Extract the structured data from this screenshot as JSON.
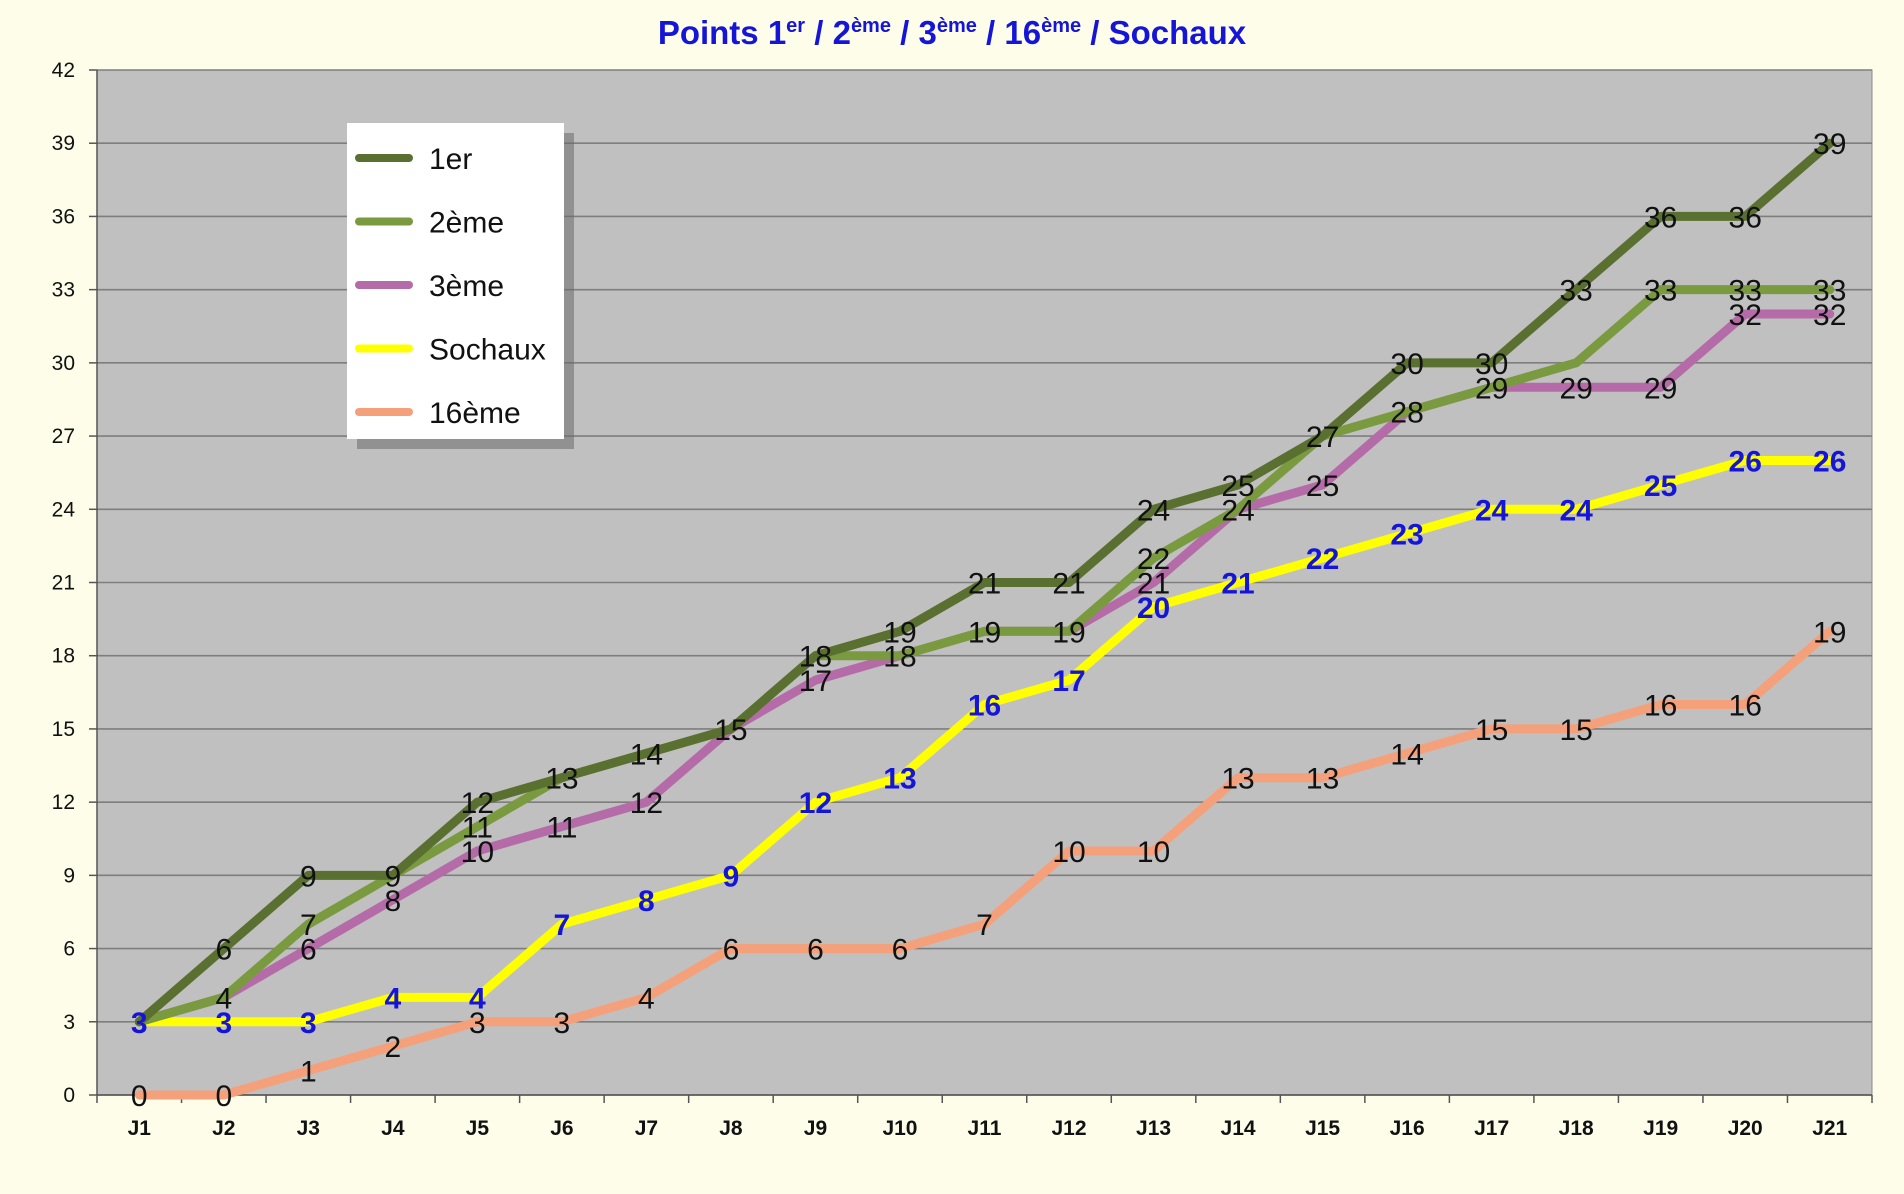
{
  "title": {
    "parts": [
      {
        "text": "Points 1",
        "sup": false
      },
      {
        "text": "er",
        "sup": true
      },
      {
        "text": " / 2",
        "sup": false
      },
      {
        "text": "ème",
        "sup": true
      },
      {
        "text": " / 3",
        "sup": false
      },
      {
        "text": "ème",
        "sup": true
      },
      {
        "text": " / 16",
        "sup": false
      },
      {
        "text": "ème",
        "sup": true
      },
      {
        "text": " / Sochaux",
        "sup": false
      }
    ],
    "color": "#1515d8"
  },
  "chart_data": {
    "type": "line",
    "title": "Points 1er / 2ème / 3ème / 16ème / Sochaux",
    "xlabel": "",
    "ylabel": "",
    "categories": [
      "J1",
      "J2",
      "J3",
      "J4",
      "J5",
      "J6",
      "J7",
      "J8",
      "J9",
      "J10",
      "J11",
      "J12",
      "J13",
      "J14",
      "J15",
      "J16",
      "J17",
      "J18",
      "J19",
      "J20",
      "J21"
    ],
    "ylim": [
      0,
      42
    ],
    "yticks": [
      0,
      3,
      6,
      9,
      12,
      15,
      18,
      21,
      24,
      27,
      30,
      33,
      36,
      39,
      42
    ],
    "grid": true,
    "legend_position": "top-left",
    "plot_background": "#c0c0c0",
    "series": [
      {
        "name": "1er",
        "color": "#5a7030",
        "label_style": "black",
        "show_labels": true,
        "values": [
          3,
          6,
          9,
          9,
          12,
          13,
          14,
          15,
          18,
          19,
          21,
          21,
          24,
          25,
          27,
          30,
          30,
          33,
          36,
          36,
          39
        ]
      },
      {
        "name": "2ème",
        "color": "#7a9a40",
        "label_style": "black",
        "show_labels": true,
        "values": [
          3,
          4,
          7,
          9,
          11,
          13,
          14,
          15,
          18,
          18,
          19,
          19,
          22,
          24,
          27,
          28,
          29,
          30,
          33,
          33,
          33
        ]
      },
      {
        "name": "3ème",
        "color": "#b46ba8",
        "label_style": "black",
        "show_labels": true,
        "values": [
          3,
          4,
          6,
          8,
          10,
          11,
          12,
          15,
          17,
          18,
          19,
          19,
          21,
          24,
          25,
          28,
          29,
          29,
          29,
          32,
          32
        ]
      },
      {
        "name": "Sochaux",
        "color": "#ffff00",
        "label_style": "blue",
        "show_labels": true,
        "values": [
          3,
          3,
          3,
          4,
          4,
          7,
          8,
          9,
          12,
          13,
          16,
          17,
          20,
          21,
          22,
          23,
          24,
          24,
          25,
          26,
          26
        ]
      },
      {
        "name": "16ème",
        "color": "#f4a07a",
        "label_style": "black",
        "show_labels": true,
        "values": [
          0,
          0,
          1,
          2,
          3,
          3,
          4,
          6,
          6,
          6,
          7,
          10,
          10,
          13,
          13,
          14,
          15,
          15,
          16,
          16,
          19
        ]
      }
    ],
    "point_labels": {
      "1er": [
        null,
        "6",
        "9",
        "9",
        "12",
        "13",
        "14",
        "15",
        "18",
        "19",
        "21",
        "21",
        "24",
        "25",
        "27",
        "30",
        "30",
        "33",
        "36",
        "36",
        "39"
      ],
      "2ème": [
        null,
        null,
        "7",
        null,
        "11",
        null,
        null,
        null,
        null,
        null,
        null,
        null,
        "22",
        null,
        null,
        null,
        null,
        null,
        "33",
        "33",
        "33"
      ],
      "3ème": [
        null,
        "4",
        "6",
        "8",
        "10",
        "11",
        "12",
        null,
        "17",
        "18",
        "19",
        "19",
        "21",
        "24",
        "25",
        "28",
        "29",
        "29",
        "29",
        "32",
        "32"
      ],
      "Sochaux": [
        "3",
        "3",
        "3",
        "4",
        "4",
        "7",
        "8",
        "9",
        "12",
        "13",
        "16",
        "17",
        "20",
        "21",
        "22",
        "23",
        "24",
        "24",
        "25",
        "26",
        "26"
      ],
      "16ème": [
        "0",
        "0",
        "1",
        "2",
        "3",
        "3",
        "4",
        "6",
        "6",
        "6",
        "7",
        "10",
        "10",
        "13",
        "13",
        "14",
        "15",
        "15",
        "16",
        "16",
        "19"
      ]
    }
  }
}
